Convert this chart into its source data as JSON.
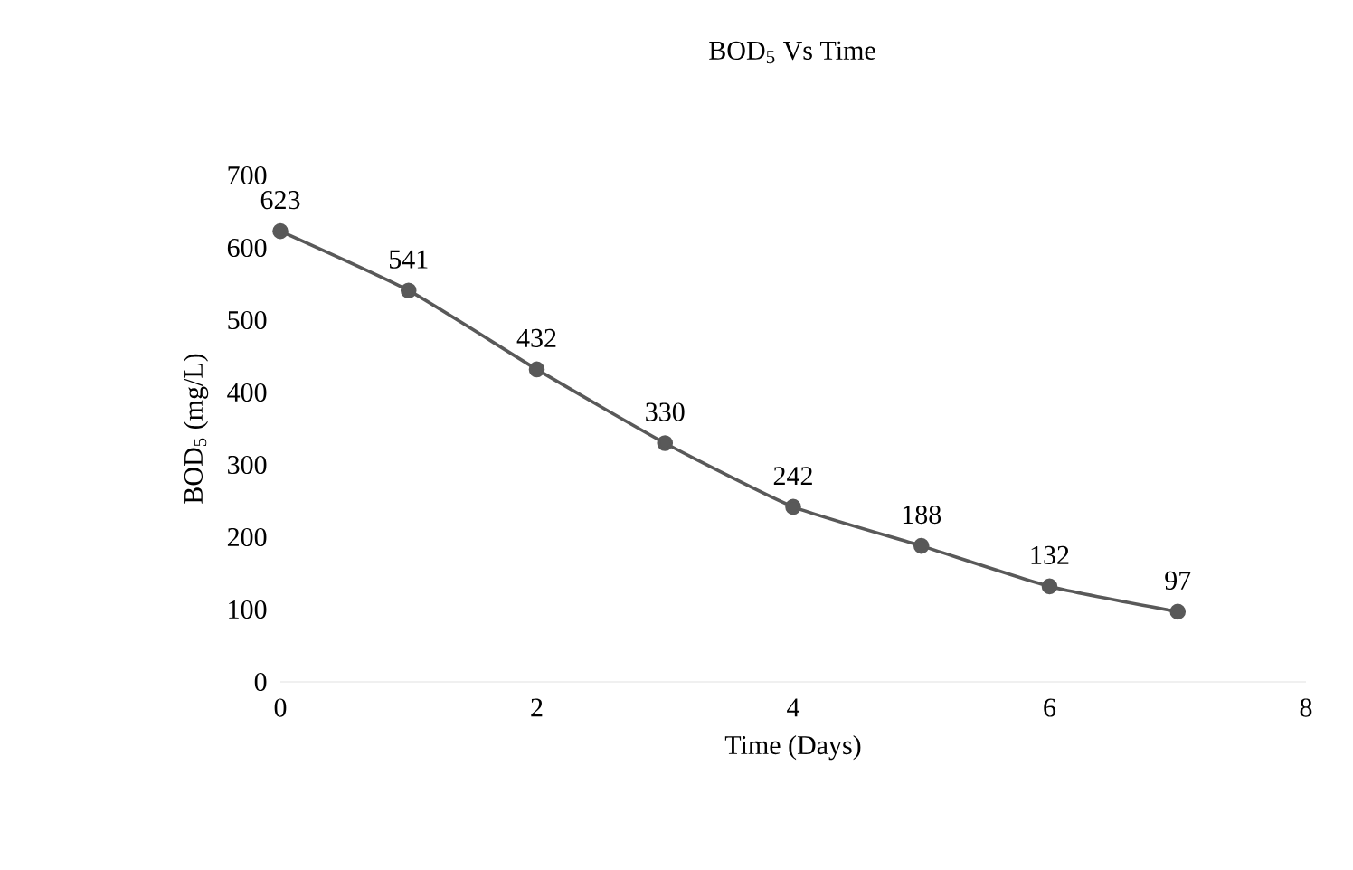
{
  "chart_data": {
    "type": "line",
    "title": "BOD$_{5}$ Vs Time",
    "xlabel": "Time (Days)",
    "ylabel": "BOD$_{5}$ (mg/L)",
    "x": [
      0,
      1,
      2,
      3,
      4,
      5,
      6,
      7
    ],
    "series": [
      {
        "color": "#595959",
        "values": [
          623,
          541,
          432,
          330,
          242,
          188,
          132,
          97
        ]
      }
    ],
    "xlim": [
      0,
      8
    ],
    "xticks": [
      0,
      2,
      4,
      6,
      8
    ],
    "ylim": [
      0,
      700
    ],
    "yticks": [
      0,
      100,
      200,
      300,
      400,
      500,
      600,
      700
    ],
    "data_labels": true,
    "marker": "circle",
    "line_style": "solid",
    "grid": false
  }
}
